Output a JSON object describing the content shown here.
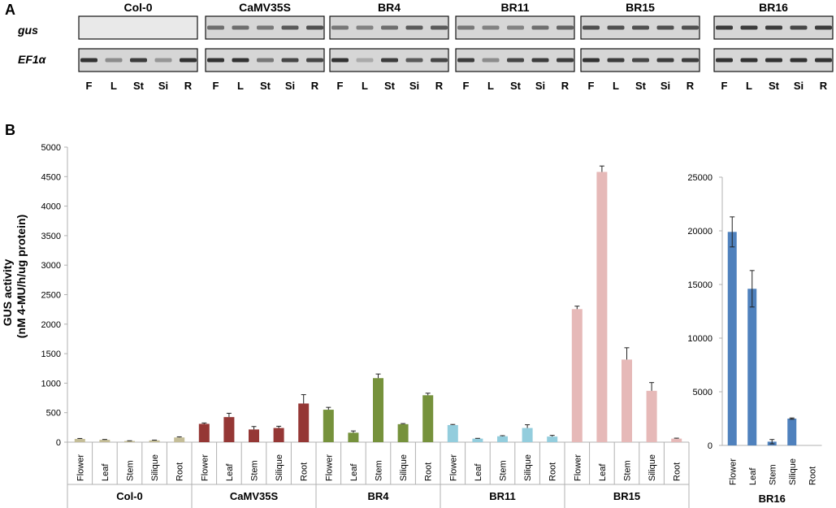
{
  "panel_a": {
    "label": "A",
    "row_labels": [
      "gus",
      "EF1α"
    ],
    "lane_labels": [
      "F",
      "L",
      "St",
      "Si",
      "R"
    ],
    "lines": [
      {
        "name": "Col-0",
        "gus": [
          0,
          0,
          0,
          0,
          0
        ],
        "ef1a": [
          0.9,
          0.45,
          0.85,
          0.4,
          0.9
        ]
      },
      {
        "name": "CaMV35S",
        "gus": [
          0.6,
          0.6,
          0.55,
          0.7,
          0.75
        ],
        "ef1a": [
          0.9,
          0.9,
          0.55,
          0.8,
          0.8
        ]
      },
      {
        "name": "BR4",
        "gus": [
          0.55,
          0.5,
          0.6,
          0.7,
          0.7
        ],
        "ef1a": [
          0.9,
          0.3,
          0.85,
          0.7,
          0.8
        ]
      },
      {
        "name": "BR11",
        "gus": [
          0.55,
          0.5,
          0.5,
          0.6,
          0.65
        ],
        "ef1a": [
          0.85,
          0.45,
          0.8,
          0.85,
          0.85
        ]
      },
      {
        "name": "BR15",
        "gus": [
          0.75,
          0.75,
          0.75,
          0.75,
          0.75
        ],
        "ef1a": [
          0.9,
          0.85,
          0.8,
          0.85,
          0.85
        ]
      },
      {
        "name": "BR16",
        "gus": [
          0.85,
          0.85,
          0.85,
          0.8,
          0.85
        ],
        "ef1a": [
          0.9,
          0.9,
          0.9,
          0.9,
          0.9
        ]
      }
    ]
  },
  "panel_b_label": "B",
  "chart_data": [
    {
      "type": "bar",
      "ylabel_line1": "GUS activity",
      "ylabel_line2": "(nM 4-MU/h/ug protein)",
      "ylim": [
        0,
        5000
      ],
      "yticks": [
        0,
        500,
        1000,
        1500,
        2000,
        2500,
        3000,
        3500,
        4000,
        4500,
        5000
      ],
      "categories": [
        "Flower",
        "Leaf",
        "Stem",
        "Silique",
        "Root"
      ],
      "groups": [
        {
          "name": "Col-0",
          "color": "#c4bd97",
          "values": [
            55,
            40,
            20,
            30,
            80
          ],
          "errors": [
            8,
            6,
            4,
            5,
            10
          ]
        },
        {
          "name": "CaMV35S",
          "color": "#953735",
          "values": [
            310,
            425,
            215,
            240,
            655
          ],
          "errors": [
            15,
            65,
            50,
            30,
            150
          ]
        },
        {
          "name": "BR4",
          "color": "#76923c",
          "values": [
            550,
            160,
            1085,
            305,
            795
          ],
          "errors": [
            40,
            30,
            70,
            10,
            35
          ]
        },
        {
          "name": "BR11",
          "color": "#93cddd",
          "values": [
            290,
            60,
            100,
            240,
            95
          ],
          "errors": [
            10,
            5,
            10,
            55,
            20
          ]
        },
        {
          "name": "BR15",
          "color": "#e6b9b8",
          "values": [
            2255,
            4580,
            1400,
            870,
            60
          ],
          "errors": [
            50,
            100,
            200,
            140,
            8
          ]
        }
      ]
    },
    {
      "type": "bar",
      "ylim": [
        0,
        25000
      ],
      "yticks": [
        0,
        5000,
        10000,
        15000,
        20000,
        25000
      ],
      "categories": [
        "Flower",
        "Leaf",
        "Stem",
        "Silique",
        "Root"
      ],
      "groups": [
        {
          "name": "BR16",
          "color": "#4f81bd",
          "values": [
            19900,
            14600,
            350,
            2500,
            0
          ],
          "errors": [
            1400,
            1700,
            200,
            60,
            0
          ]
        }
      ]
    }
  ]
}
